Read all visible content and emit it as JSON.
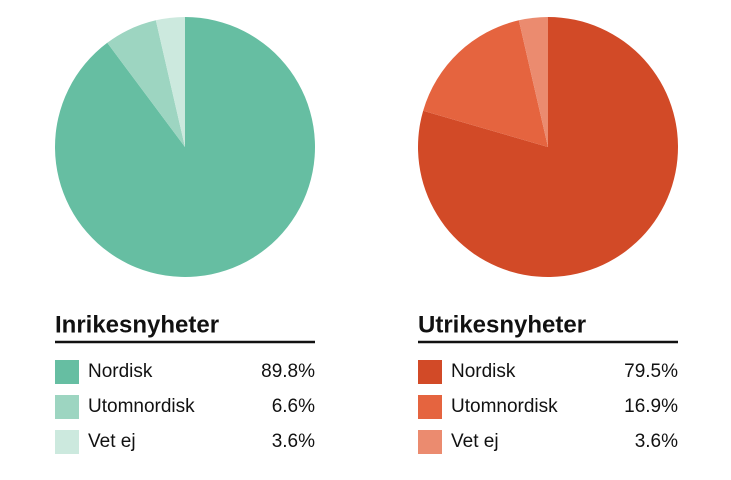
{
  "chart_data": [
    {
      "type": "pie",
      "title": "Inrikesnyheter",
      "categories": [
        "Nordisk",
        "Utomnordisk",
        "Vet ej"
      ],
      "values": [
        89.8,
        6.6,
        3.6
      ],
      "value_labels": [
        "89.8%",
        "6.6%",
        "3.6%"
      ],
      "colors": [
        "#66bea2",
        "#9dd5c1",
        "#cce9de"
      ]
    },
    {
      "type": "pie",
      "title": "Utrikesnyheter",
      "categories": [
        "Nordisk",
        "Utomnordisk",
        "Vet ej"
      ],
      "values": [
        79.5,
        16.9,
        3.6
      ],
      "value_labels": [
        "79.5%",
        "16.9%",
        "3.6%"
      ],
      "colors": [
        "#d24a27",
        "#e5643f",
        "#eb8b6f"
      ]
    }
  ]
}
